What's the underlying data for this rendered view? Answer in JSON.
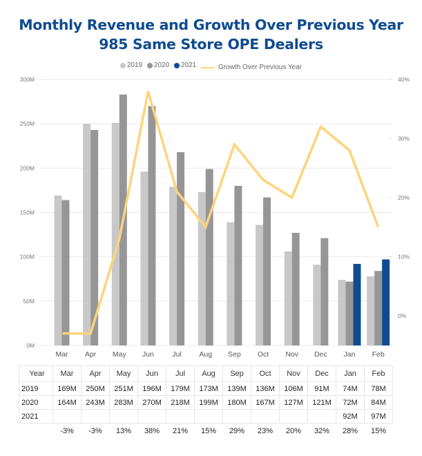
{
  "title_line1": "Monthly Revenue and Growth Over Previous Year",
  "title_line2": "985 Same Store OPE Dealers",
  "legend": [
    {
      "label": "2019",
      "color": "#c8c8c8",
      "kind": "dot"
    },
    {
      "label": "2020",
      "color": "#969696",
      "kind": "dot"
    },
    {
      "label": "2021",
      "color": "#0f4b8f",
      "kind": "dot"
    },
    {
      "label": "Growth Over Previous Year",
      "color": "#ffd37a",
      "kind": "line"
    }
  ],
  "chart_data": {
    "type": "bar",
    "title": "Monthly Revenue and Growth Over Previous Year - 985 Same Store OPE Dealers",
    "categories": [
      "Mar",
      "Apr",
      "May",
      "Jun",
      "Jul",
      "Aug",
      "Sep",
      "Oct",
      "Nov",
      "Dec",
      "Jan",
      "Feb"
    ],
    "series": [
      {
        "name": "2019",
        "type": "bar",
        "axis": "left",
        "color": "#c8c8c8",
        "values": [
          169,
          250,
          251,
          196,
          179,
          173,
          139,
          136,
          106,
          91,
          74,
          78
        ]
      },
      {
        "name": "2020",
        "type": "bar",
        "axis": "left",
        "color": "#969696",
        "values": [
          164,
          243,
          283,
          270,
          218,
          199,
          180,
          167,
          127,
          121,
          72,
          84
        ]
      },
      {
        "name": "2021",
        "type": "bar",
        "axis": "left",
        "color": "#0f4b8f",
        "values": [
          null,
          null,
          null,
          null,
          null,
          null,
          null,
          null,
          null,
          null,
          92,
          97
        ]
      },
      {
        "name": "Growth Over Previous Year",
        "type": "line",
        "axis": "right",
        "color": "#ffd37a",
        "values": [
          -3,
          -3,
          13,
          38,
          21,
          15,
          29,
          23,
          20,
          32,
          28,
          15
        ]
      }
    ],
    "left_axis": {
      "unit": "M",
      "ylim": [
        0,
        300
      ],
      "ticks": [
        "0M",
        "50M",
        "100M",
        "150M",
        "200M",
        "250M",
        "300M"
      ],
      "tick_values": [
        0,
        50,
        100,
        150,
        200,
        250,
        300
      ]
    },
    "right_axis": {
      "unit": "%",
      "ylim": [
        -5,
        40
      ],
      "ticks": [
        "0%",
        "10%",
        "20%",
        "30%",
        "40%"
      ],
      "tick_values": [
        0,
        10,
        20,
        30,
        40
      ]
    },
    "grid": true,
    "legend_position": "top-center",
    "xlabel": "",
    "ylabel": ""
  },
  "table": {
    "header": [
      "Year",
      "Mar",
      "Apr",
      "May",
      "Jun",
      "Jul",
      "Aug",
      "Sep",
      "Oct",
      "Nov",
      "Dec",
      "Jan",
      "Feb"
    ],
    "rows": [
      [
        "2019",
        "169M",
        "250M",
        "251M",
        "196M",
        "179M",
        "173M",
        "139M",
        "136M",
        "106M",
        "91M",
        "74M",
        "78M"
      ],
      [
        "2020",
        "164M",
        "243M",
        "283M",
        "270M",
        "218M",
        "199M",
        "180M",
        "167M",
        "127M",
        "121M",
        "72M",
        "84M"
      ],
      [
        "2021",
        "",
        "",
        "",
        "",
        "",
        "",
        "",
        "",
        "",
        "",
        "92M",
        "97M"
      ]
    ],
    "growth": [
      "",
      "-3%",
      "-3%",
      "13%",
      "38%",
      "21%",
      "15%",
      "29%",
      "23%",
      "20%",
      "32%",
      "28%",
      "15%"
    ]
  }
}
